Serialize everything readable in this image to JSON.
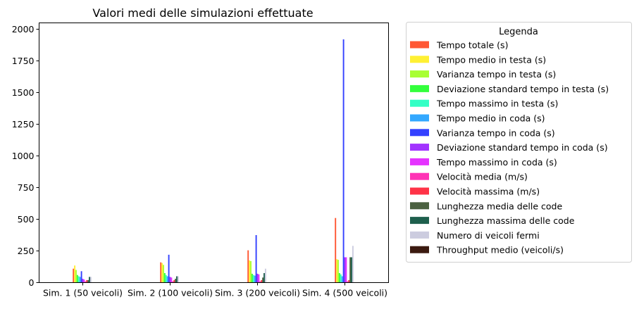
{
  "chart_data": {
    "type": "bar",
    "title": "Valori medi delle simulazioni effettuate",
    "xlabel": "",
    "ylabel": "",
    "ylim": [
      0,
      2050
    ],
    "yticks": [
      0,
      250,
      500,
      750,
      1000,
      1250,
      1500,
      1750,
      2000
    ],
    "grid": false,
    "legend": {
      "title": "Legenda",
      "placement": "outside-right-top"
    },
    "categories": [
      "Sim. 1 (50 veicoli)",
      "Sim. 2 (100 veicoli)",
      "Sim. 3 (200 veicoli)",
      "Sim. 4 (500 veicoli)"
    ],
    "series": [
      {
        "name": "Tempo totale (s)",
        "color": "#ff5733",
        "values": [
          110,
          160,
          255,
          510
        ]
      },
      {
        "name": "Tempo medio in testa (s)",
        "color": "#fff033",
        "values": [
          135,
          155,
          175,
          185
        ]
      },
      {
        "name": "Varianza tempo in testa (s)",
        "color": "#a8ff33",
        "values": [
          100,
          140,
          170,
          180
        ]
      },
      {
        "name": "Deviazione standard tempo in testa (s)",
        "color": "#33ff3c",
        "values": [
          60,
          75,
          70,
          75
        ]
      },
      {
        "name": "Tempo massimo in testa (s)",
        "color": "#33ffc5",
        "values": [
          50,
          60,
          60,
          65
        ]
      },
      {
        "name": "Tempo medio in coda (s)",
        "color": "#33a8ff",
        "values": [
          45,
          50,
          55,
          50
        ]
      },
      {
        "name": "Varianza tempo in coda (s)",
        "color": "#3340ff",
        "values": [
          90,
          220,
          375,
          1920
        ]
      },
      {
        "name": "Deviazione standard tempo in coda (s)",
        "color": "#a233ff",
        "values": [
          30,
          45,
          70,
          200
        ]
      },
      {
        "name": "Tempo massimo in coda (s)",
        "color": "#e533ff",
        "values": [
          25,
          40,
          65,
          200
        ]
      },
      {
        "name": "Velocità media (m/s)",
        "color": "#ff33b5",
        "values": [
          10,
          10,
          10,
          10
        ]
      },
      {
        "name": "Velocità massima (m/s)",
        "color": "#ff3347",
        "values": [
          20,
          20,
          20,
          20
        ]
      },
      {
        "name": "Lunghezza media delle code",
        "color": "#4b6141",
        "values": [
          20,
          30,
          40,
          200
        ]
      },
      {
        "name": "Lunghezza massima delle code",
        "color": "#1e5f4d",
        "values": [
          45,
          50,
          75,
          200
        ]
      },
      {
        "name": "Numero di veicoli fermi",
        "color": "#ccccdf",
        "values": [
          45,
          50,
          110,
          290
        ]
      },
      {
        "name": "Throughput medio (veicoli/s)",
        "color": "#3b1a10",
        "values": [
          1,
          1,
          1,
          1
        ]
      }
    ]
  }
}
